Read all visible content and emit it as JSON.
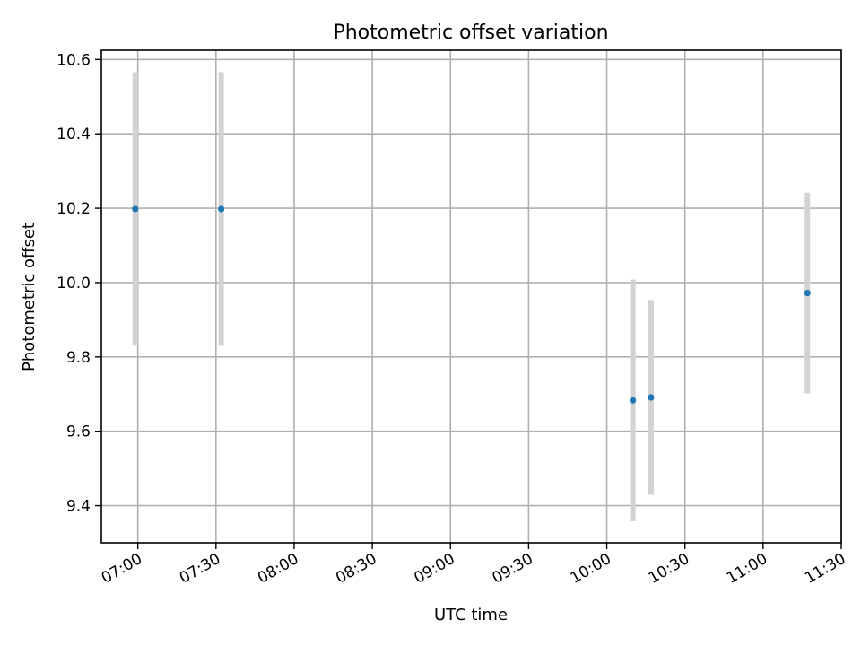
{
  "chart_data": {
    "type": "scatter",
    "title": "Photometric offset variation",
    "xlabel": "UTC time",
    "ylabel": "Photometric offset",
    "x_ticks": [
      "07:00",
      "07:30",
      "08:00",
      "08:30",
      "09:00",
      "09:30",
      "10:00",
      "10:30",
      "11:00",
      "11:30"
    ],
    "y_ticks": [
      "9.4",
      "9.6",
      "9.8",
      "10.0",
      "10.2",
      "10.4",
      "10.6"
    ],
    "xlim": [
      "06:46",
      "11:30"
    ],
    "ylim": [
      9.3,
      10.625
    ],
    "grid": true,
    "colors": {
      "point": "#1f77b4",
      "errorbar": "#d3d3d3",
      "grid": "#b0b0b0"
    },
    "points": [
      {
        "x": "06:59",
        "y": 10.198,
        "err": 0.368
      },
      {
        "x": "07:32",
        "y": 10.198,
        "err": 0.368
      },
      {
        "x": "10:10",
        "y": 9.683,
        "err": 0.325
      },
      {
        "x": "10:17",
        "y": 9.691,
        "err": 0.262
      },
      {
        "x": "11:17",
        "y": 9.972,
        "err": 0.27
      }
    ]
  }
}
